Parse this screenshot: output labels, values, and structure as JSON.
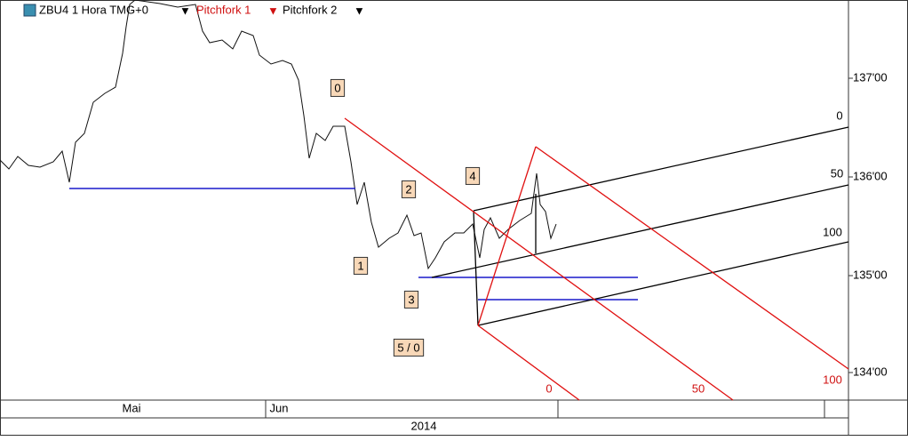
{
  "header": {
    "symbol": "ZBU4 1 Hora TMG+0",
    "pitchfork1": "Pitchfork 1",
    "pitchfork2": "Pitchfork 2"
  },
  "price_axis": {
    "labels": [
      "137'00",
      "136'00",
      "135'00",
      "134'00"
    ]
  },
  "pitchfork2_levels": [
    "0",
    "50",
    "100"
  ],
  "pitchfork1_levels": [
    "0",
    "50",
    "100"
  ],
  "wave_labels": [
    "0",
    "1",
    "2",
    "3",
    "4",
    "5 / 0"
  ],
  "time_axis": {
    "months": [
      "Mai",
      "Jun"
    ],
    "year": "2014"
  }
}
